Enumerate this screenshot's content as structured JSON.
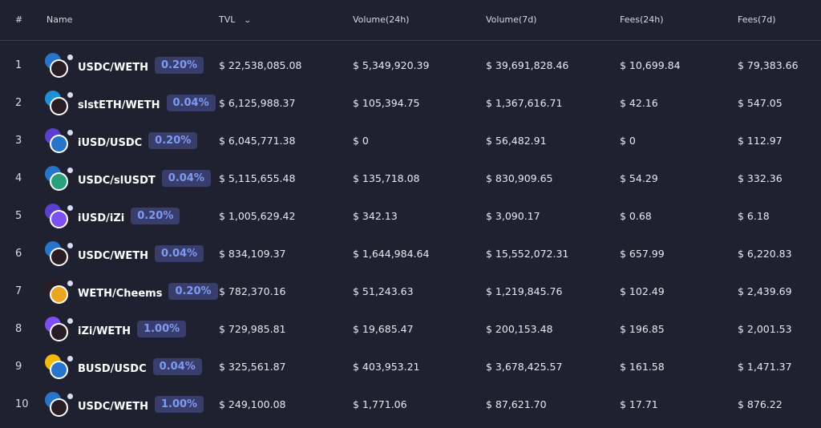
{
  "header": {
    "index": "#",
    "name": "Name",
    "tvl": "TVL",
    "vol24": "Volume(24h)",
    "vol7": "Volume(7d)",
    "fees24": "Fees(24h)",
    "fees7": "Fees(7d)",
    "sort_icon": "chevron-down-icon"
  },
  "token_colors": {
    "USDC": "#2775ca",
    "WETH": "#2a1c24",
    "slstETH": "#1e90d8",
    "iUSD": "#5a3fd0",
    "iZi": "#7b4ff0",
    "Cheems": "#e8a623",
    "BUSD": "#f0b90b",
    "slUSDT": "#26a17b"
  },
  "rows": [
    {
      "index": "1",
      "tokens": [
        "USDC",
        "WETH"
      ],
      "pair": "USDC/WETH",
      "fee": "0.20%",
      "tvl": "$ 22,538,085.08",
      "vol24": "$ 5,349,920.39",
      "vol7": "$ 39,691,828.46",
      "fees24": "$ 10,699.84",
      "fees7": "$ 79,383.66"
    },
    {
      "index": "2",
      "tokens": [
        "slstETH",
        "WETH"
      ],
      "pair": "slstETH/WETH",
      "fee": "0.04%",
      "tvl": "$ 6,125,988.37",
      "vol24": "$ 105,394.75",
      "vol7": "$ 1,367,616.71",
      "fees24": "$ 42.16",
      "fees7": "$ 547.05"
    },
    {
      "index": "3",
      "tokens": [
        "iUSD",
        "USDC"
      ],
      "pair": "iUSD/USDC",
      "fee": "0.20%",
      "tvl": "$ 6,045,771.38",
      "vol24": "$ 0",
      "vol7": "$ 56,482.91",
      "fees24": "$ 0",
      "fees7": "$ 112.97"
    },
    {
      "index": "4",
      "tokens": [
        "USDC",
        "slUSDT"
      ],
      "pair": "USDC/slUSDT",
      "fee": "0.04%",
      "tvl": "$ 5,115,655.48",
      "vol24": "$ 135,718.08",
      "vol7": "$ 830,909.65",
      "fees24": "$ 54.29",
      "fees7": "$ 332.36"
    },
    {
      "index": "5",
      "tokens": [
        "iUSD",
        "iZi"
      ],
      "pair": "iUSD/iZi",
      "fee": "0.20%",
      "tvl": "$ 1,005,629.42",
      "vol24": "$ 342.13",
      "vol7": "$ 3,090.17",
      "fees24": "$ 0.68",
      "fees7": "$ 6.18"
    },
    {
      "index": "6",
      "tokens": [
        "USDC",
        "WETH"
      ],
      "pair": "USDC/WETH",
      "fee": "0.04%",
      "tvl": "$ 834,109.37",
      "vol24": "$ 1,644,984.64",
      "vol7": "$ 15,552,072.31",
      "fees24": "$ 657.99",
      "fees7": "$ 6,220.83"
    },
    {
      "index": "7",
      "tokens": [
        "WETH",
        "Cheems"
      ],
      "pair": "WETH/Cheems",
      "fee": "0.20%",
      "tvl": "$ 782,370.16",
      "vol24": "$ 51,243.63",
      "vol7": "$ 1,219,845.76",
      "fees24": "$ 102.49",
      "fees7": "$ 2,439.69"
    },
    {
      "index": "8",
      "tokens": [
        "iZi",
        "WETH"
      ],
      "pair": "iZi/WETH",
      "fee": "1.00%",
      "tvl": "$ 729,985.81",
      "vol24": "$ 19,685.47",
      "vol7": "$ 200,153.48",
      "fees24": "$ 196.85",
      "fees7": "$ 2,001.53"
    },
    {
      "index": "9",
      "tokens": [
        "BUSD",
        "USDC"
      ],
      "pair": "BUSD/USDC",
      "fee": "0.04%",
      "tvl": "$ 325,561.87",
      "vol24": "$ 403,953.21",
      "vol7": "$ 3,678,425.57",
      "fees24": "$ 161.58",
      "fees7": "$ 1,471.37"
    },
    {
      "index": "10",
      "tokens": [
        "USDC",
        "WETH"
      ],
      "pair": "USDC/WETH",
      "fee": "1.00%",
      "tvl": "$ 249,100.08",
      "vol24": "$ 1,771.06",
      "vol7": "$ 87,621.70",
      "fees24": "$ 17.71",
      "fees7": "$ 876.22"
    }
  ]
}
